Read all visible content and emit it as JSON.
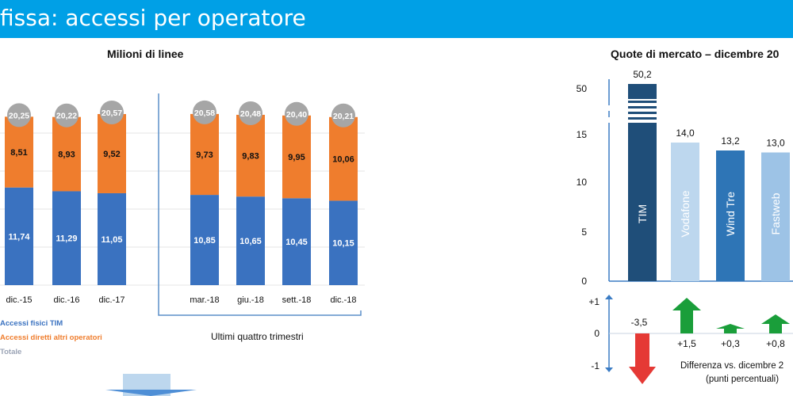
{
  "header": {
    "title": "fissa: accessi per operatore"
  },
  "left_chart": {
    "title": "Milioni di linee",
    "legend": [
      {
        "label": "Accessi fisici TIM",
        "color": "#3a72c0"
      },
      {
        "label": "Accessi diretti altri operatori",
        "color": "#ef7d2d"
      },
      {
        "label": "Totale",
        "color": "#9aa3b5"
      }
    ],
    "quarters_label": "Ultimi quattro trimestri"
  },
  "right_chart": {
    "title": "Quote di mercato –  dicembre 20",
    "diff_label_line1": "Differenza vs. dicembre 2",
    "diff_label_line2": "(punti percentuali)"
  },
  "chart_data": [
    {
      "type": "bar",
      "title": "Milioni di linee",
      "stacked": true,
      "categories": [
        "dic.-15",
        "dic.-16",
        "dic.-17",
        "mar.-18",
        "giu.-18",
        "sett.-18",
        "dic.-18"
      ],
      "series": [
        {
          "name": "Accessi fisici TIM",
          "values": [
            11.74,
            11.29,
            11.05,
            10.85,
            10.65,
            10.45,
            10.15
          ],
          "labels": [
            "11,74",
            "11,29",
            "11,05",
            "10,85",
            "10,65",
            "10,45",
            "10,15"
          ],
          "color": "#3a72c0"
        },
        {
          "name": "Accessi diretti altri operatori",
          "values": [
            8.51,
            8.93,
            9.52,
            9.73,
            9.83,
            9.95,
            10.06
          ],
          "labels": [
            "8,51",
            "8,93",
            "9,52",
            "9,73",
            "9,83",
            "9,95",
            "10,06"
          ],
          "color": "#ef7d2d"
        },
        {
          "name": "Totale",
          "values": [
            20.25,
            20.22,
            20.57,
            20.58,
            20.48,
            20.4,
            20.21
          ],
          "labels": [
            "20,25",
            "20,22",
            "20,57",
            "20,58",
            "20,48",
            "20,40",
            "20,21"
          ],
          "color": "#a6a6a6"
        }
      ]
    },
    {
      "type": "bar",
      "title": "Quote di mercato –  dicembre 20",
      "categories": [
        "TIM",
        "Vodafone",
        "Wind Tre",
        "Fastweb"
      ],
      "values": [
        50.2,
        14.0,
        13.2,
        13.0
      ],
      "value_labels": [
        "50,2",
        "14,0",
        "13,2",
        "13,0"
      ],
      "colors": [
        "#1f4e79",
        "#bdd7ee",
        "#2e75b6",
        "#9dc3e6"
      ],
      "y_axis_ticks": [
        "0",
        "5",
        "10",
        "15",
        "50"
      ],
      "axis_break": true
    },
    {
      "type": "bar",
      "title": "Differenza vs. dicembre 2",
      "categories": [
        "TIM",
        "Vodafone",
        "Wind Tre",
        "Fastweb"
      ],
      "values": [
        -3.5,
        1.5,
        0.3,
        0.8
      ],
      "value_labels": [
        "-3,5",
        "+1,5",
        "+0,3",
        "+0,8"
      ],
      "ylim": [
        -1,
        1
      ],
      "y_axis_ticks": [
        "+1",
        "0",
        "-1"
      ]
    }
  ]
}
